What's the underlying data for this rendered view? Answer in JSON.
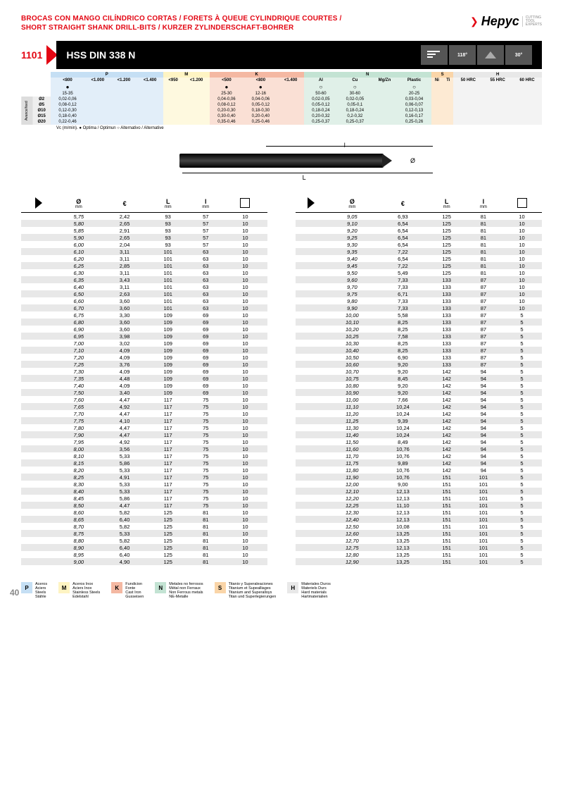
{
  "header": {
    "title_line1": "BROCAS CON MANGO CILÍNDRICO CORTAS / FORETS À QUEUE CYLINDRIQUE COURTES /",
    "title_line2": "SHORT STRAIGHT SHANK DRILL-BITS / KURZER ZYLINDERSCHAFT-BOHRER",
    "logo": "Hepyc",
    "logo_sub": "CUTTING TOOL EXPERTS"
  },
  "product": {
    "num": "1101",
    "name": "HSS DIN 338 N",
    "angle1": "118°",
    "angle2": "30°"
  },
  "spec": {
    "groups": [
      {
        "k": "P",
        "c": "hdr-p",
        "s": "sub-p",
        "cols": [
          "<800",
          "<1.000",
          "<1.200",
          "<1.400"
        ]
      },
      {
        "k": "M",
        "c": "hdr-m",
        "s": "sub-m",
        "cols": [
          "<950",
          "<1.200"
        ]
      },
      {
        "k": "K",
        "c": "hdr-k",
        "s": "sub-k",
        "cols": [
          "<500",
          "<800",
          "<1.400"
        ]
      },
      {
        "k": "N",
        "c": "hdr-n",
        "s": "sub-n",
        "cols": [
          "Al",
          "Cu",
          "Mg/Zn",
          "Plastic"
        ]
      },
      {
        "k": "S",
        "c": "hdr-s",
        "s": "sub-s",
        "cols": [
          "Ni",
          "Ti"
        ]
      },
      {
        "k": "H",
        "c": "hdr-h",
        "s": "sub-h",
        "cols": [
          "50 HRC",
          "55 HRC",
          "60 HRC"
        ]
      }
    ],
    "dotrow": [
      "●",
      "",
      "",
      "",
      "",
      "",
      "●",
      "●",
      "",
      "○",
      "○",
      "",
      "○",
      "",
      "",
      "",
      "",
      ""
    ],
    "vcrow": [
      "15-35",
      "",
      "",
      "",
      "",
      "",
      "25-30",
      "12-16",
      "",
      "50-60",
      "30-60",
      "",
      "20-25",
      "",
      "",
      "",
      "",
      ""
    ],
    "sidelabel": "Avance/feed",
    "rows": [
      {
        "d": "Ø2",
        "v": [
          "0,02-0,06",
          "",
          "",
          "",
          "",
          "",
          "0,04-0,06",
          "0,04-0,06",
          "",
          "0,02-0,05",
          "0,02-0,05",
          "",
          "0,03-0,04",
          "",
          "",
          "",
          "",
          ""
        ]
      },
      {
        "d": "Ø5",
        "v": [
          "0,08-0,12",
          "",
          "",
          "",
          "",
          "",
          "0,08-0,12",
          "0,05-0,12",
          "",
          "0,05-0,12",
          "0,05-0,1",
          "",
          "0,06-0,07",
          "",
          "",
          "",
          "",
          ""
        ]
      },
      {
        "d": "Ø10",
        "v": [
          "0,12-0,30",
          "",
          "",
          "",
          "",
          "",
          "0,20-0,30",
          "0,18-0,30",
          "",
          "0,18-0,24",
          "0,18-0,24",
          "",
          "0,12-0,13",
          "",
          "",
          "",
          "",
          ""
        ]
      },
      {
        "d": "Ø15",
        "v": [
          "0,18-0,40",
          "",
          "",
          "",
          "",
          "",
          "0,30-0,40",
          "0,20-0,40",
          "",
          "0,20-0,32",
          "0,2-0,32",
          "",
          "0,16-0,17",
          "",
          "",
          "",
          "",
          ""
        ]
      },
      {
        "d": "Ø20",
        "v": [
          "0,22-0,46",
          "",
          "",
          "",
          "",
          "",
          "0,35-0,46",
          "0,25-0,46",
          "",
          "0,25-0,37",
          "0,25-0,37",
          "",
          "0,25-0,26",
          "",
          "",
          "",
          "",
          ""
        ]
      }
    ],
    "note": "Vc (m/min). ● Optima / Optimun ○ Alternativo / Alternative"
  },
  "diagram": {
    "L": "L",
    "l": "l",
    "d": "Ø"
  },
  "cols": [
    "Ø mm",
    "€",
    "L mm",
    "l mm",
    "□"
  ],
  "left": [
    [
      "5,75",
      "2,42",
      "93",
      "57",
      "10"
    ],
    [
      "5,80",
      "2,65",
      "93",
      "57",
      "10"
    ],
    [
      "5,85",
      "2,91",
      "93",
      "57",
      "10"
    ],
    [
      "5,90",
      "2,65",
      "93",
      "57",
      "10"
    ],
    [
      "6,00",
      "2,04",
      "93",
      "57",
      "10"
    ],
    [
      "6,10",
      "3,11",
      "101",
      "63",
      "10"
    ],
    [
      "6,20",
      "3,11",
      "101",
      "63",
      "10"
    ],
    [
      "6,25",
      "2,85",
      "101",
      "63",
      "10"
    ],
    [
      "6,30",
      "3,11",
      "101",
      "63",
      "10"
    ],
    [
      "6,35",
      "3,43",
      "101",
      "63",
      "10"
    ],
    [
      "6,40",
      "3,11",
      "101",
      "63",
      "10"
    ],
    [
      "6,50",
      "2,63",
      "101",
      "63",
      "10"
    ],
    [
      "6,60",
      "3,60",
      "101",
      "63",
      "10"
    ],
    [
      "6,70",
      "3,60",
      "101",
      "63",
      "10"
    ],
    [
      "6,75",
      "3,30",
      "109",
      "69",
      "10"
    ],
    [
      "6,80",
      "3,60",
      "109",
      "69",
      "10"
    ],
    [
      "6,90",
      "3,60",
      "109",
      "69",
      "10"
    ],
    [
      "6,95",
      "3,98",
      "109",
      "69",
      "10"
    ],
    [
      "7,00",
      "3,02",
      "109",
      "69",
      "10"
    ],
    [
      "7,10",
      "4,09",
      "109",
      "69",
      "10"
    ],
    [
      "7,20",
      "4,09",
      "109",
      "69",
      "10"
    ],
    [
      "7,25",
      "3,76",
      "109",
      "69",
      "10"
    ],
    [
      "7,30",
      "4,09",
      "109",
      "69",
      "10"
    ],
    [
      "7,35",
      "4,48",
      "109",
      "69",
      "10"
    ],
    [
      "7,40",
      "4,09",
      "109",
      "69",
      "10"
    ],
    [
      "7,50",
      "3,40",
      "109",
      "69",
      "10"
    ],
    [
      "7,60",
      "4,47",
      "117",
      "75",
      "10"
    ],
    [
      "7,65",
      "4,92",
      "117",
      "75",
      "10"
    ],
    [
      "7,70",
      "4,47",
      "117",
      "75",
      "10"
    ],
    [
      "7,75",
      "4,10",
      "117",
      "75",
      "10"
    ],
    [
      "7,80",
      "4,47",
      "117",
      "75",
      "10"
    ],
    [
      "7,90",
      "4,47",
      "117",
      "75",
      "10"
    ],
    [
      "7,95",
      "4,92",
      "117",
      "75",
      "10"
    ],
    [
      "8,00",
      "3,56",
      "117",
      "75",
      "10"
    ],
    [
      "8,10",
      "5,33",
      "117",
      "75",
      "10"
    ],
    [
      "8,15",
      "5,86",
      "117",
      "75",
      "10"
    ],
    [
      "8,20",
      "5,33",
      "117",
      "75",
      "10"
    ],
    [
      "8,25",
      "4,91",
      "117",
      "75",
      "10"
    ],
    [
      "8,30",
      "5,33",
      "117",
      "75",
      "10"
    ],
    [
      "8,40",
      "5,33",
      "117",
      "75",
      "10"
    ],
    [
      "8,45",
      "5,86",
      "117",
      "75",
      "10"
    ],
    [
      "8,50",
      "4,47",
      "117",
      "75",
      "10"
    ],
    [
      "8,60",
      "5,82",
      "125",
      "81",
      "10"
    ],
    [
      "8,65",
      "6,40",
      "125",
      "81",
      "10"
    ],
    [
      "8,70",
      "5,82",
      "125",
      "81",
      "10"
    ],
    [
      "8,75",
      "5,33",
      "125",
      "81",
      "10"
    ],
    [
      "8,80",
      "5,82",
      "125",
      "81",
      "10"
    ],
    [
      "8,90",
      "6,40",
      "125",
      "81",
      "10"
    ],
    [
      "8,95",
      "6,40",
      "125",
      "81",
      "10"
    ],
    [
      "9,00",
      "4,90",
      "125",
      "81",
      "10"
    ]
  ],
  "right": [
    [
      "9,05",
      "6,93",
      "125",
      "81",
      "10"
    ],
    [
      "9,10",
      "6,54",
      "125",
      "81",
      "10"
    ],
    [
      "9,20",
      "6,54",
      "125",
      "81",
      "10"
    ],
    [
      "9,25",
      "6,54",
      "125",
      "81",
      "10"
    ],
    [
      "9,30",
      "6,54",
      "125",
      "81",
      "10"
    ],
    [
      "9,35",
      "7,22",
      "125",
      "81",
      "10"
    ],
    [
      "9,40",
      "6,54",
      "125",
      "81",
      "10"
    ],
    [
      "9,45",
      "7,22",
      "125",
      "81",
      "10"
    ],
    [
      "9,50",
      "5,49",
      "125",
      "81",
      "10"
    ],
    [
      "9,60",
      "7,33",
      "133",
      "87",
      "10"
    ],
    [
      "9,70",
      "7,33",
      "133",
      "87",
      "10"
    ],
    [
      "9,75",
      "6,71",
      "133",
      "87",
      "10"
    ],
    [
      "9,80",
      "7,33",
      "133",
      "87",
      "10"
    ],
    [
      "9,90",
      "7,33",
      "133",
      "87",
      "10"
    ],
    [
      "10,00",
      "5,58",
      "133",
      "87",
      "5"
    ],
    [
      "10,10",
      "8,25",
      "133",
      "87",
      "5"
    ],
    [
      "10,20",
      "8,25",
      "133",
      "87",
      "5"
    ],
    [
      "10,25",
      "7,58",
      "133",
      "87",
      "5"
    ],
    [
      "10,30",
      "8,25",
      "133",
      "87",
      "5"
    ],
    [
      "10,40",
      "8,25",
      "133",
      "87",
      "5"
    ],
    [
      "10,50",
      "6,90",
      "133",
      "87",
      "5"
    ],
    [
      "10,60",
      "9,20",
      "133",
      "87",
      "5"
    ],
    [
      "10,70",
      "9,20",
      "142",
      "94",
      "5"
    ],
    [
      "10,75",
      "8,45",
      "142",
      "94",
      "5"
    ],
    [
      "10,80",
      "9,20",
      "142",
      "94",
      "5"
    ],
    [
      "10,90",
      "9,20",
      "142",
      "94",
      "5"
    ],
    [
      "11,00",
      "7,66",
      "142",
      "94",
      "5"
    ],
    [
      "11,10",
      "10,24",
      "142",
      "94",
      "5"
    ],
    [
      "11,20",
      "10,24",
      "142",
      "94",
      "5"
    ],
    [
      "11,25",
      "9,39",
      "142",
      "94",
      "5"
    ],
    [
      "11,30",
      "10,24",
      "142",
      "94",
      "5"
    ],
    [
      "11,40",
      "10,24",
      "142",
      "94",
      "5"
    ],
    [
      "11,50",
      "8,49",
      "142",
      "94",
      "5"
    ],
    [
      "11,60",
      "10,76",
      "142",
      "94",
      "5"
    ],
    [
      "11,70",
      "10,76",
      "142",
      "94",
      "5"
    ],
    [
      "11,75",
      "9,89",
      "142",
      "94",
      "5"
    ],
    [
      "11,80",
      "10,76",
      "142",
      "94",
      "5"
    ],
    [
      "11,90",
      "10,76",
      "151",
      "101",
      "5"
    ],
    [
      "12,00",
      "9,00",
      "151",
      "101",
      "5"
    ],
    [
      "12,10",
      "12,13",
      "151",
      "101",
      "5"
    ],
    [
      "12,20",
      "12,13",
      "151",
      "101",
      "5"
    ],
    [
      "12,25",
      "11,10",
      "151",
      "101",
      "5"
    ],
    [
      "12,30",
      "12,13",
      "151",
      "101",
      "5"
    ],
    [
      "12,40",
      "12,13",
      "151",
      "101",
      "5"
    ],
    [
      "12,50",
      "10,08",
      "151",
      "101",
      "5"
    ],
    [
      "12,60",
      "13,25",
      "151",
      "101",
      "5"
    ],
    [
      "12,70",
      "13,25",
      "151",
      "101",
      "5"
    ],
    [
      "12,75",
      "12,13",
      "151",
      "101",
      "5"
    ],
    [
      "12,80",
      "13,25",
      "151",
      "101",
      "5"
    ],
    [
      "12,90",
      "13,25",
      "151",
      "101",
      "5"
    ]
  ],
  "legend": [
    {
      "k": "P",
      "bg": "#c5dff4",
      "t": [
        "Aceros",
        "Aciers",
        "Steels",
        "Stähle"
      ]
    },
    {
      "k": "M",
      "bg": "#fef4c3",
      "t": [
        "Aceros Inox",
        "Aciers Inox",
        "Stainless Steels",
        "Edelstahl"
      ]
    },
    {
      "k": "K",
      "bg": "#f4b8a2",
      "t": [
        "Fundicion",
        "Fonte",
        "Cast Iron",
        "Gusseisen"
      ]
    },
    {
      "k": "N",
      "bg": "#c3e3d3",
      "t": [
        "Metales no ferrosos",
        "Métal non Ferraux",
        "Non Ferrous metals",
        "NE-Metalle"
      ]
    },
    {
      "k": "S",
      "bg": "#fad5a8",
      "t": [
        "Titanio y Superaleaciones",
        "Titanium et Supealliages",
        "Titanium and Superalloys",
        "Titan und Superlegierungen"
      ]
    },
    {
      "k": "H",
      "bg": "#e8e8e8",
      "t": [
        "Materiales Duros",
        "Materiels Durs",
        "Hard materials",
        "Hartmaterialien"
      ]
    }
  ],
  "page": "40"
}
